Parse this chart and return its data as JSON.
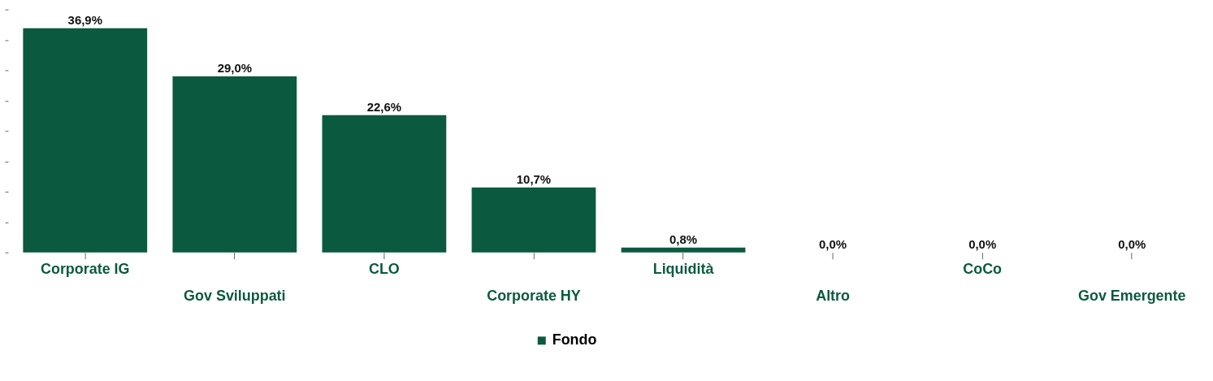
{
  "chart_data": {
    "type": "bar",
    "categories": [
      "Corporate IG",
      "Gov Sviluppati",
      "CLO",
      "Corporate HY",
      "Liquidità",
      "Altro",
      "CoCo",
      "Gov Emergente"
    ],
    "series": [
      {
        "name": "Fondo",
        "color": "#0b5a40",
        "values": [
          36.9,
          29.0,
          22.6,
          10.7,
          0.8,
          0.0,
          0.0,
          0.0
        ],
        "value_labels": [
          "36,9%",
          "29,0%",
          "22,6%",
          "10,7%",
          "0,8%",
          "0,0%",
          "0,0%",
          "0,0%"
        ]
      }
    ],
    "tick_labels": "x",
    "grid": false,
    "legend": "bottom"
  }
}
